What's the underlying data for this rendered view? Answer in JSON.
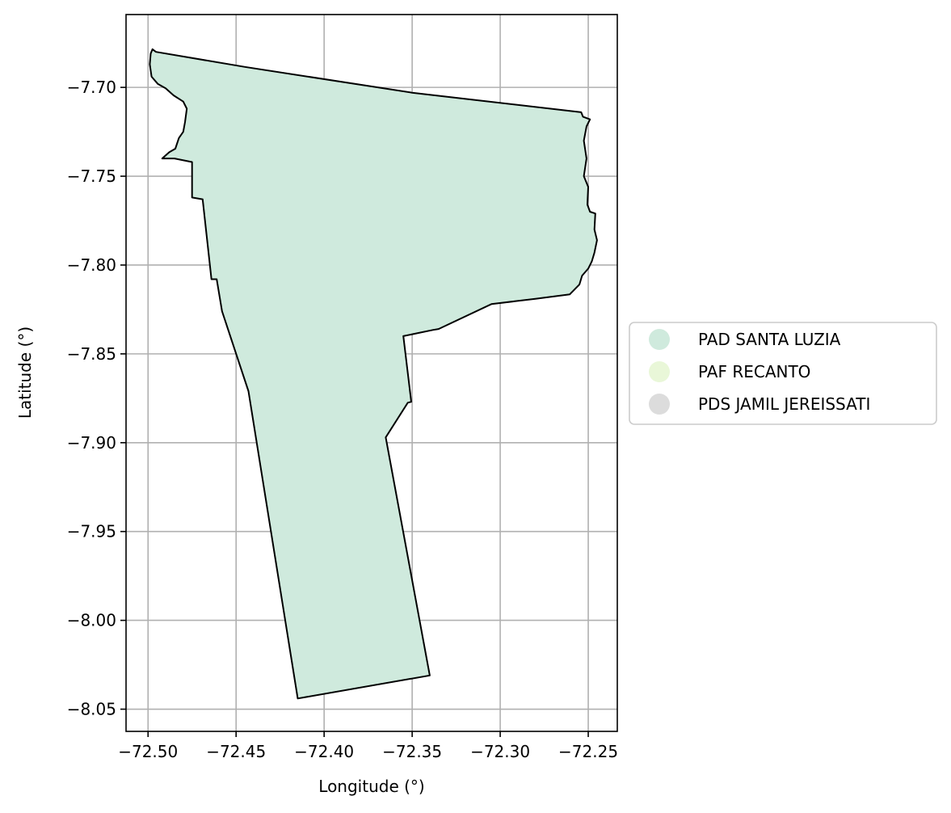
{
  "chart_data": {
    "type": "map",
    "xlabel": "Longitude (°)",
    "ylabel": "Latitude (°)",
    "xlim": [
      -72.5125,
      -72.2335
    ],
    "ylim": [
      -8.0625,
      -7.659
    ],
    "grid": true,
    "legend_position": "right",
    "x_ticks": [
      {
        "value": -72.5,
        "label": "−72.50"
      },
      {
        "value": -72.45,
        "label": "−72.45"
      },
      {
        "value": -72.4,
        "label": "−72.40"
      },
      {
        "value": -72.35,
        "label": "−72.35"
      },
      {
        "value": -72.3,
        "label": "−72.30"
      },
      {
        "value": -72.25,
        "label": "−72.25"
      }
    ],
    "y_ticks": [
      {
        "value": -7.7,
        "label": "−7.70"
      },
      {
        "value": -7.75,
        "label": "−7.75"
      },
      {
        "value": -7.8,
        "label": "−7.80"
      },
      {
        "value": -7.85,
        "label": "−7.85"
      },
      {
        "value": -7.9,
        "label": "−7.90"
      },
      {
        "value": -7.95,
        "label": "−7.95"
      },
      {
        "value": -8.0,
        "label": "−8.00"
      },
      {
        "value": -8.05,
        "label": "−8.05"
      }
    ],
    "legend": [
      {
        "label": "PAD SANTA LUZIA",
        "color": "#cfeadd"
      },
      {
        "label": "PAF RECANTO",
        "color": "#e9f7d8"
      },
      {
        "label": "PDS JAMIL JEREISSATI",
        "color": "#dcdcdc"
      }
    ],
    "polygons": [
      {
        "name": "PAD SANTA LUZIA",
        "fill": "#cfeadd",
        "stroke": "#000000",
        "coords": [
          [
            -72.4975,
            -7.6785
          ],
          [
            -72.4955,
            -7.68
          ],
          [
            -72.445,
            -7.6885
          ],
          [
            -72.35,
            -7.703
          ],
          [
            -72.254,
            -7.714
          ],
          [
            -72.253,
            -7.7165
          ],
          [
            -72.249,
            -7.718
          ],
          [
            -72.251,
            -7.722
          ],
          [
            -72.2525,
            -7.73
          ],
          [
            -72.251,
            -7.74
          ],
          [
            -72.2525,
            -7.75
          ],
          [
            -72.25,
            -7.756
          ],
          [
            -72.2505,
            -7.766
          ],
          [
            -72.249,
            -7.77
          ],
          [
            -72.246,
            -7.771
          ],
          [
            -72.2465,
            -7.78
          ],
          [
            -72.245,
            -7.786
          ],
          [
            -72.2465,
            -7.793
          ],
          [
            -72.248,
            -7.798
          ],
          [
            -72.25,
            -7.802
          ],
          [
            -72.2535,
            -7.806
          ],
          [
            -72.255,
            -7.811
          ],
          [
            -72.2605,
            -7.8165
          ],
          [
            -72.28,
            -7.819
          ],
          [
            -72.305,
            -7.822
          ],
          [
            -72.335,
            -7.836
          ],
          [
            -72.338,
            -7.8365
          ],
          [
            -72.355,
            -7.84
          ],
          [
            -72.3505,
            -7.877
          ],
          [
            -72.3525,
            -7.8775
          ],
          [
            -72.365,
            -7.897
          ],
          [
            -72.34,
            -8.031
          ],
          [
            -72.415,
            -8.044
          ],
          [
            -72.443,
            -7.871
          ],
          [
            -72.458,
            -7.826
          ],
          [
            -72.461,
            -7.808
          ],
          [
            -72.464,
            -7.808
          ],
          [
            -72.469,
            -7.763
          ],
          [
            -72.475,
            -7.762
          ],
          [
            -72.475,
            -7.742
          ],
          [
            -72.485,
            -7.74
          ],
          [
            -72.492,
            -7.74
          ],
          [
            -72.488,
            -7.7365
          ],
          [
            -72.4845,
            -7.7345
          ],
          [
            -72.4825,
            -7.7285
          ],
          [
            -72.48,
            -7.725
          ],
          [
            -72.479,
            -7.7195
          ],
          [
            -72.478,
            -7.712
          ],
          [
            -72.48,
            -7.708
          ],
          [
            -72.4855,
            -7.7045
          ],
          [
            -72.49,
            -7.7005
          ],
          [
            -72.4945,
            -7.698
          ],
          [
            -72.498,
            -7.694
          ],
          [
            -72.499,
            -7.687
          ],
          [
            -72.4985,
            -7.681
          ]
        ]
      }
    ]
  }
}
